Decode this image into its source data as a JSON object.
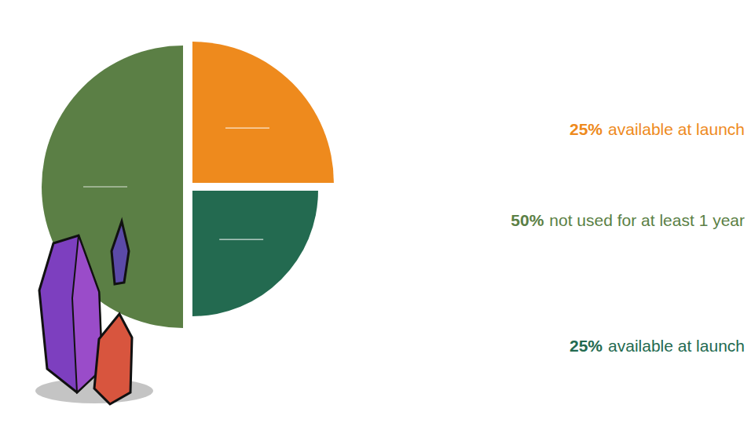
{
  "chart_data": {
    "type": "pie",
    "categories": [
      "available at launch",
      "available at launch",
      "not used for at least 1 year"
    ],
    "values": [
      25,
      25,
      50
    ],
    "value_labels": [
      "25%",
      "25%",
      "50%"
    ],
    "colors": [
      "#ee8a1d",
      "#236a50",
      "#5b7f45"
    ],
    "data_labels": true
  }
}
